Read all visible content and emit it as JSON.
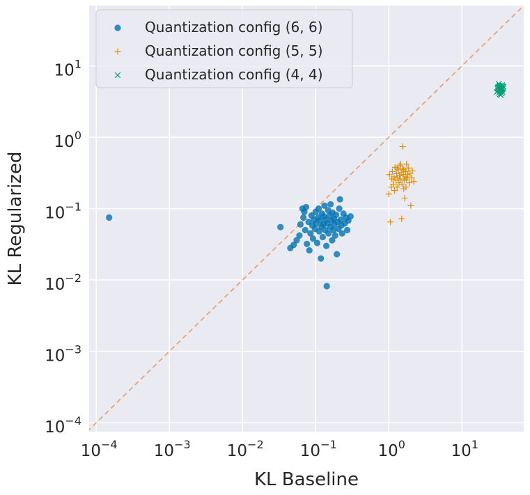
{
  "chart_data": {
    "type": "scatter",
    "title": "",
    "xlabel": "KL Baseline",
    "ylabel": "KL Regularized",
    "xscale": "log",
    "yscale": "log",
    "xlim": [
      8e-05,
      70
    ],
    "ylim": [
      7.5e-05,
      70
    ],
    "grid": true,
    "legend_position": "top-left",
    "x_ticks": [
      {
        "value": 0.0001,
        "base": "10",
        "exp": "−4"
      },
      {
        "value": 0.001,
        "base": "10",
        "exp": "−3"
      },
      {
        "value": 0.01,
        "base": "10",
        "exp": "−2"
      },
      {
        "value": 0.1,
        "base": "10",
        "exp": "−1"
      },
      {
        "value": 1,
        "base": "10",
        "exp": "0"
      },
      {
        "value": 10,
        "base": "10",
        "exp": "1"
      }
    ],
    "y_ticks": [
      {
        "value": 0.0001,
        "base": "10",
        "exp": "−4"
      },
      {
        "value": 0.001,
        "base": "10",
        "exp": "−3"
      },
      {
        "value": 0.01,
        "base": "10",
        "exp": "−2"
      },
      {
        "value": 0.1,
        "base": "10",
        "exp": "−1"
      },
      {
        "value": 1,
        "base": "10",
        "exp": "0"
      },
      {
        "value": 10,
        "base": "10",
        "exp": "1"
      }
    ],
    "reference_line": {
      "type": "identity",
      "style": "dashed",
      "color": "#e9a373"
    },
    "series": [
      {
        "name": "Quantization config (6, 6)",
        "marker": "circle",
        "color": "#0173b2",
        "points": [
          [
            0.00015,
            0.075
          ],
          [
            0.033,
            0.055
          ],
          [
            0.045,
            0.028
          ],
          [
            0.05,
            0.031
          ],
          [
            0.055,
            0.036
          ],
          [
            0.06,
            0.042
          ],
          [
            0.062,
            0.06
          ],
          [
            0.066,
            0.1
          ],
          [
            0.068,
            0.075
          ],
          [
            0.07,
            0.09
          ],
          [
            0.072,
            0.05
          ],
          [
            0.074,
            0.105
          ],
          [
            0.076,
            0.032
          ],
          [
            0.08,
            0.065
          ],
          [
            0.082,
            0.026
          ],
          [
            0.085,
            0.045
          ],
          [
            0.088,
            0.08
          ],
          [
            0.09,
            0.058
          ],
          [
            0.092,
            0.038
          ],
          [
            0.095,
            0.07
          ],
          [
            0.098,
            0.052
          ],
          [
            0.1,
            0.09
          ],
          [
            0.102,
            0.062
          ],
          [
            0.105,
            0.033
          ],
          [
            0.108,
            0.075
          ],
          [
            0.11,
            0.1
          ],
          [
            0.112,
            0.048
          ],
          [
            0.115,
            0.068
          ],
          [
            0.118,
            0.02
          ],
          [
            0.12,
            0.056
          ],
          [
            0.122,
            0.085
          ],
          [
            0.125,
            0.04
          ],
          [
            0.128,
            0.06
          ],
          [
            0.13,
            0.078
          ],
          [
            0.132,
            0.11
          ],
          [
            0.135,
            0.05
          ],
          [
            0.138,
            0.07
          ],
          [
            0.14,
            0.03
          ],
          [
            0.142,
            0.0082
          ],
          [
            0.145,
            0.062
          ],
          [
            0.148,
            0.095
          ],
          [
            0.15,
            0.045
          ],
          [
            0.155,
            0.08
          ],
          [
            0.158,
            0.055
          ],
          [
            0.16,
            0.115
          ],
          [
            0.165,
            0.068
          ],
          [
            0.168,
            0.036
          ],
          [
            0.17,
            0.088
          ],
          [
            0.175,
            0.05
          ],
          [
            0.178,
            0.072
          ],
          [
            0.18,
            0.06
          ],
          [
            0.185,
            0.042
          ],
          [
            0.19,
            0.082
          ],
          [
            0.195,
            0.023
          ],
          [
            0.2,
            0.065
          ],
          [
            0.205,
            0.052
          ],
          [
            0.21,
            0.1
          ],
          [
            0.215,
            0.135
          ],
          [
            0.22,
            0.07
          ],
          [
            0.225,
            0.058
          ],
          [
            0.23,
            0.045
          ],
          [
            0.24,
            0.085
          ],
          [
            0.25,
            0.062
          ],
          [
            0.26,
            0.075
          ],
          [
            0.27,
            0.05
          ],
          [
            0.28,
            0.068
          ],
          [
            0.3,
            0.078
          ]
        ]
      },
      {
        "name": "Quantization config (5, 5)",
        "marker": "plus",
        "color": "#de8f05",
        "points": [
          [
            1.0,
            0.16
          ],
          [
            1.02,
            0.3
          ],
          [
            1.05,
            0.065
          ],
          [
            1.08,
            0.2
          ],
          [
            1.1,
            0.26
          ],
          [
            1.12,
            0.33
          ],
          [
            1.15,
            0.22
          ],
          [
            1.18,
            0.28
          ],
          [
            1.2,
            0.18
          ],
          [
            1.22,
            0.38
          ],
          [
            1.25,
            0.25
          ],
          [
            1.28,
            0.31
          ],
          [
            1.3,
            0.2
          ],
          [
            1.32,
            0.27
          ],
          [
            1.35,
            0.35
          ],
          [
            1.38,
            0.23
          ],
          [
            1.4,
            0.29
          ],
          [
            1.42,
            0.4
          ],
          [
            1.45,
            0.26
          ],
          [
            1.48,
            0.32
          ],
          [
            1.5,
            0.072
          ],
          [
            1.52,
            0.22
          ],
          [
            1.55,
            0.74
          ],
          [
            1.58,
            0.3
          ],
          [
            1.6,
            0.35
          ],
          [
            1.62,
            0.25
          ],
          [
            1.65,
            0.14
          ],
          [
            1.68,
            0.28
          ],
          [
            1.7,
            0.33
          ],
          [
            1.72,
            0.2
          ],
          [
            1.75,
            0.42
          ],
          [
            1.78,
            0.27
          ],
          [
            1.8,
            0.3
          ],
          [
            1.85,
            0.37
          ],
          [
            1.9,
            0.23
          ],
          [
            1.95,
            0.31
          ],
          [
            2.0,
            0.11
          ],
          [
            2.05,
            0.27
          ],
          [
            2.1,
            0.34
          ],
          [
            2.2,
            0.24
          ],
          [
            1.3,
            0.37
          ],
          [
            1.6,
            0.19
          ],
          [
            1.45,
            0.42
          ],
          [
            1.75,
            0.26
          ],
          [
            1.55,
            0.36
          ]
        ]
      },
      {
        "name": "Quantization config (4, 4)",
        "marker": "x",
        "color": "#029e73",
        "points": [
          [
            30,
            4.3
          ],
          [
            30.5,
            4.8
          ],
          [
            31,
            4.5
          ],
          [
            31.5,
            5.1
          ],
          [
            32,
            4.2
          ],
          [
            32.5,
            4.7
          ],
          [
            33,
            5.3
          ],
          [
            33.5,
            4.4
          ],
          [
            34,
            4.9
          ],
          [
            34.5,
            5.0
          ],
          [
            35,
            4.6
          ],
          [
            35.5,
            5.4
          ],
          [
            36,
            4.3
          ],
          [
            36.5,
            4.8
          ],
          [
            37,
            5.1
          ],
          [
            32,
            5.6
          ],
          [
            34,
            3.9
          ],
          [
            35,
            4.1
          ],
          [
            33,
            4.0
          ],
          [
            36,
            5.2
          ],
          [
            31,
            5.0
          ],
          [
            34.5,
            4.5
          ],
          [
            33,
            4.8
          ],
          [
            35.5,
            4.7
          ],
          [
            32.5,
            5.2
          ]
        ]
      }
    ]
  }
}
